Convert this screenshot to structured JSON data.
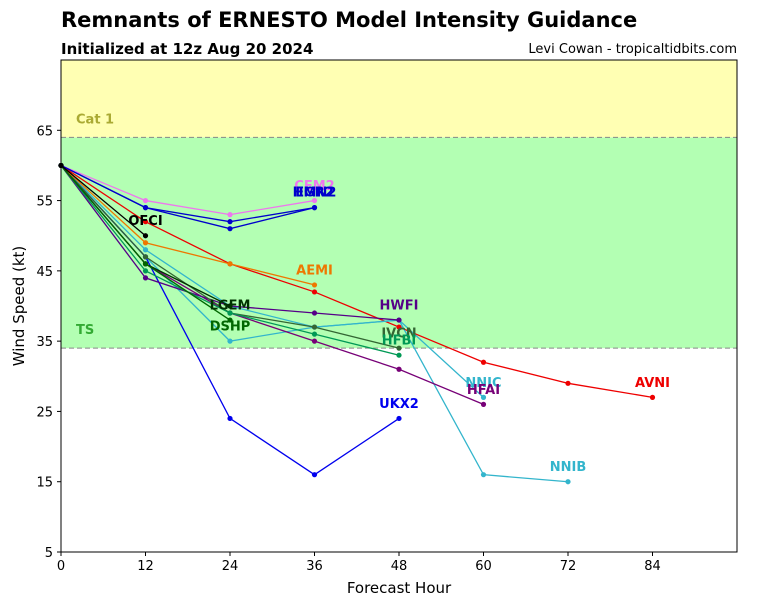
{
  "header": {
    "title": "Remnants of ERNESTO Model Intensity Guidance",
    "subtitle": "Initialized at 12z Aug 20 2024",
    "credit": "Levi Cowan - tropicaltidbits.com"
  },
  "chart_data": {
    "type": "line",
    "xlabel": "Forecast Hour",
    "ylabel": "Wind Speed (kt)",
    "xlim": [
      0,
      96
    ],
    "ylim": [
      5,
      75
    ],
    "xticks": [
      0,
      12,
      24,
      36,
      48,
      60,
      72,
      84
    ],
    "yticks": [
      5,
      15,
      25,
      35,
      45,
      55,
      65
    ],
    "bands": [
      {
        "label": "TS",
        "from": 34,
        "to": 64,
        "color": "#b3ffb3",
        "label_color": "#33aa33",
        "label_y": 36
      },
      {
        "label": "Cat 1",
        "from": 64,
        "to": 75,
        "color": "#ffffb3",
        "label_color": "#aaaa33",
        "label_y": 66
      }
    ],
    "series": [
      {
        "name": "AVNI",
        "color": "#ee0000",
        "x": [
          0,
          12,
          24,
          36,
          48,
          60,
          72,
          84
        ],
        "y": [
          60,
          52,
          46,
          42,
          37,
          32,
          29,
          27
        ],
        "label": {
          "x": 84,
          "y": 28.5
        }
      },
      {
        "name": "NNIB",
        "color": "#33b5cc",
        "x": [
          0,
          12,
          24,
          36,
          48,
          60,
          72
        ],
        "y": [
          60,
          48,
          40,
          37,
          38,
          16,
          15
        ],
        "label": {
          "x": 72,
          "y": 16.5
        }
      },
      {
        "name": "NNIC",
        "color": "#33b5cc",
        "x": [
          0,
          12,
          24,
          36,
          48,
          60
        ],
        "y": [
          60,
          47,
          35,
          37,
          38,
          27
        ],
        "label": {
          "x": 60,
          "y": 28.5
        }
      },
      {
        "name": "HFAI",
        "color": "#770077",
        "x": [
          0,
          12,
          24,
          36,
          48,
          60
        ],
        "y": [
          60,
          46,
          39,
          35,
          31,
          26
        ],
        "label": {
          "x": 60,
          "y": 27.5
        }
      },
      {
        "name": "UKX2",
        "color": "#0000ee",
        "x": [
          0,
          12,
          24,
          36,
          48
        ],
        "y": [
          60,
          47,
          24,
          16,
          24
        ],
        "label": {
          "x": 48,
          "y": 25.5
        }
      },
      {
        "name": "HWFI",
        "color": "#550088",
        "x": [
          0,
          12,
          24,
          36,
          48
        ],
        "y": [
          60,
          44,
          40,
          39,
          38
        ],
        "label": {
          "x": 48,
          "y": 39.5
        }
      },
      {
        "name": "IVCN",
        "color": "#336633",
        "x": [
          0,
          12,
          24,
          36,
          48
        ],
        "y": [
          60,
          47,
          39,
          37,
          34
        ],
        "label": {
          "x": 48,
          "y": 35.5
        }
      },
      {
        "name": "HFBI",
        "color": "#009955",
        "x": [
          0,
          12,
          24,
          36,
          48
        ],
        "y": [
          60,
          45,
          39,
          36,
          33
        ],
        "label": {
          "x": 48,
          "y": 34.5
        }
      },
      {
        "name": "AEMI",
        "color": "#ee7700",
        "x": [
          0,
          12,
          24,
          36
        ],
        "y": [
          60,
          49,
          46,
          43
        ],
        "label": {
          "x": 36,
          "y": 44.5
        }
      },
      {
        "name": "CEM2",
        "color": "#ee77ee",
        "x": [
          0,
          12,
          24,
          36
        ],
        "y": [
          60,
          55,
          53,
          55
        ],
        "label": {
          "x": 36,
          "y": 56.5
        }
      },
      {
        "name": "EGR2",
        "color": "#0000cc",
        "x": [
          0,
          12,
          24,
          36
        ],
        "y": [
          60,
          54,
          52,
          54
        ],
        "label": {
          "x": 36,
          "y": 55.6
        }
      },
      {
        "name": "HMN2",
        "color": "#0000cc",
        "x": [
          0,
          12,
          24,
          36
        ],
        "y": [
          60,
          54,
          51,
          54
        ],
        "label": {
          "x": 36,
          "y": 55.6
        }
      },
      {
        "name": "LGEM",
        "color": "#003300",
        "x": [
          0,
          12,
          24
        ],
        "y": [
          60,
          46,
          40
        ],
        "label": {
          "x": 24,
          "y": 39.5
        }
      },
      {
        "name": "DSHP",
        "color": "#006600",
        "x": [
          0,
          12,
          24
        ],
        "y": [
          60,
          46,
          38
        ],
        "label": {
          "x": 24,
          "y": 36.5
        }
      },
      {
        "name": "OFCI",
        "color": "#000000",
        "x": [
          0,
          12
        ],
        "y": [
          60,
          50
        ],
        "label": {
          "x": 12,
          "y": 51.5
        }
      }
    ]
  }
}
